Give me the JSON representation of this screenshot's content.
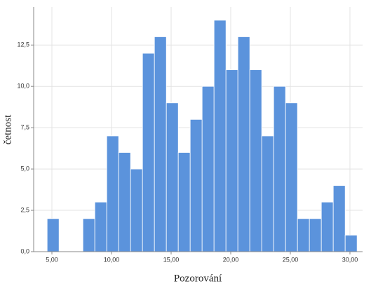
{
  "chart_data": {
    "type": "histogram",
    "x_label": "Pozorování",
    "y_label": "četnost",
    "bins": [
      4.6,
      5.6,
      6.6,
      7.6,
      8.6,
      9.6,
      10.6,
      11.6,
      12.6,
      13.6,
      14.6,
      15.6,
      16.6,
      17.6,
      18.6,
      19.6,
      20.6,
      21.6,
      22.6,
      23.6,
      24.6,
      25.6,
      26.6,
      27.6,
      28.6,
      29.6,
      30.6
    ],
    "values": [
      2,
      0,
      0,
      2,
      3,
      7,
      6,
      5,
      12,
      13,
      9,
      6,
      8,
      10,
      14,
      11,
      13,
      11,
      7,
      10,
      9,
      2,
      2,
      3,
      4,
      1
    ],
    "color": "#5b93dc",
    "xlim": [
      3.47,
      31.06
    ],
    "ylim": [
      0,
      14.8
    ],
    "xticks": [
      {
        "value": 5,
        "label": "5,00"
      },
      {
        "value": 10,
        "label": "10,00"
      },
      {
        "value": 15,
        "label": "15,00"
      },
      {
        "value": 20,
        "label": "20,00"
      },
      {
        "value": 25,
        "label": "25,00"
      },
      {
        "value": 30,
        "label": "30,00"
      }
    ],
    "yticks": [
      {
        "value": 0,
        "label": "0,0"
      },
      {
        "value": 2.5,
        "label": "2,5"
      },
      {
        "value": 5,
        "label": "5,0"
      },
      {
        "value": 7.5,
        "label": "7,5"
      },
      {
        "value": 10,
        "label": "10,0"
      },
      {
        "value": 12.5,
        "label": "12,5"
      }
    ],
    "grid": true
  }
}
